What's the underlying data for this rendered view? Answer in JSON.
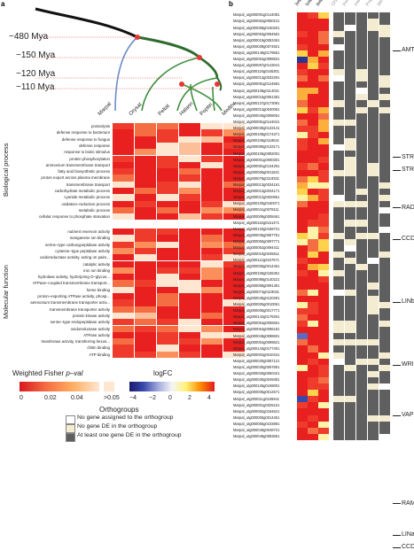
{
  "panel_a_label": "a",
  "panel_b_label": "b",
  "mya_labels": [
    "~480 Mya",
    "~150 Mya",
    "~120 Mya",
    "~110 Mya"
  ],
  "species": [
    "Marpal",
    "Orysat",
    "Peltat",
    "Halann",
    "Popttri",
    "Medtru"
  ],
  "bio_process_label": "Biological process",
  "mol_function_label": "Molecular function",
  "bio_terms": [
    "proteolysis",
    "defense response to bacterium",
    "defense response to fungus",
    "defense response",
    "response to biotic stimulus",
    "protein phosphorylation",
    "ammonium transmembrane transport",
    "fatty acid biosynthetic process",
    "proton export across plasma membrane",
    "transmembrane transport",
    "carbohydrate metabolic process",
    "cyanide metabolic process",
    "oxidation–reduction process",
    "metabolic process",
    "cellular response to phosphate starvation"
  ],
  "mol_terms": [
    "nutrient reservoir activity",
    "manganese ion binding",
    "serine–type carboxypeptidase activity",
    "cysteine–type peptidase activity",
    "oxidoreductase activity, acting on paire...",
    "catalytic activity",
    "iron ion binding",
    "hydrolase activity, hydrolyzing O–glycos...",
    "ATPase–coupled transmembrane transport...",
    "heme binding",
    "proton–exporting ATPase activity, phosp...",
    "ammonium transmembrane transporter activ...",
    "transmembrane transporter activity",
    "protein kinase activity",
    "serine–type endopeptidase activity",
    "oxidoreductase activity",
    "ATPase activity",
    "transferase activity, transferring hexos...",
    "chitin binding",
    "ATP binding"
  ],
  "fisher_title": "Weighted Fisher",
  "fisher_pval": "p–val",
  "fisher_ticks": [
    "0",
    "0.02",
    "0.04",
    ">0.05"
  ],
  "logfc_title": "logFC",
  "logfc_ticks": [
    "−4",
    "−2",
    "0",
    "2",
    "4"
  ],
  "orthogroups_title": "Orthogroups",
  "orthogroup_legend": [
    {
      "label": "No gene assigned to the orthogroup",
      "color": "#ffffff"
    },
    {
      "label": "No gene DE in the orthogroup",
      "color": "#f3ecd0"
    },
    {
      "label": "At least one gene DE in the orthogroup",
      "color": "#5f5f5f"
    }
  ],
  "condition_labels": [
    "3wp",
    "5wp",
    "8wp"
  ],
  "ortho_col_labels": [
    "Orysat",
    "Peltat",
    "Halann",
    "Popttri",
    "Medtru"
  ],
  "gene_ids": [
    "Marpal_utg000091g0144081",
    "Marpal_utg000052g0060241",
    "Marpal_utg000058g0100201",
    "Marpal_utg000053g0094581",
    "Marpal_utg000019g0053461",
    "Marpal_utg000039g0074821",
    "Marpal_utg000149g0179551",
    "Marpal_utg000054g0099831",
    "Marpal_utg000067g0143041",
    "Marpal_utg000119g0165301",
    "Marpal_utg000013g0032291",
    "Marpal_utg000081g0124581",
    "Marpal_utg000108g0114021",
    "Marpal_utg000016g0061381",
    "Marpal_utg000137g0173091",
    "Marpal_utg000013g0040081",
    "Marpal_utg000040g0008051",
    "Marpal_utg000091g0144041",
    "Marpal_utg000030g0133131",
    "Marpal_utg000108g0174371",
    "Marpal_utg000105g0118541",
    "Marpal_utg000080g0133171",
    "Marpal_utg000106g0082001",
    "Marpal_utg000001g0000301",
    "Marpal_utg000081g0134291",
    "Marpal_utg000005g0011521",
    "Marpal_utg000078g0119331",
    "Marpal_utg000013g0034161",
    "Marpal_utg000013g0034171",
    "Marpal_utg000012g0020651",
    "Marpal_utg000100g0160071",
    "Marpal_utg000041g0078111",
    "Marpal_utg000009g0008461",
    "Marpal_utg000116g0161471",
    "Marpal_utg000133g0168721",
    "Marpal_utg000035g0067751",
    "Marpal_utg000050g0097771",
    "Marpal_utg000052g0094411",
    "Marpal_utg000010g0045511",
    "Marpal_utg000112g0157671",
    "Marpal_utg000005g0014451",
    "Marpal_utg000106g0155351",
    "Marpal_utg000088g0140221",
    "Marpal_utg000058g0091391",
    "Marpal_utg000074g0118031",
    "Marpal_utg000045g0120281",
    "Marpal_utg000005g0010061",
    "Marpal_utg000005g0017771",
    "Marpal_utg000142g0178251",
    "Marpal_utg000054g0056661",
    "Marpal_utg000054g0096181",
    "Marpal_utg000049g0098601",
    "Marpal_utg000054g0099621",
    "Marpal_utg000143g0177401",
    "Marpal_utg000002g0010441",
    "Marpal_utg000030g0087121",
    "Marpal_utg000030g0067691",
    "Marpal_utg000020g0060421",
    "Marpal_utg000030g0049381",
    "Marpal_utg000126g0169001",
    "Marpal_utg000005g0012571",
    "Marpal_utg000011g0165941",
    "Marpal_utg000001g0025161",
    "Marpal_utg000082g0184521",
    "Marpal_utg000005g0014451",
    "Marpal_utg000055g0103891",
    "Marpal_utg000049g0048721",
    "Marpal_utg000049g0083651"
  ],
  "family_labels": [
    {
      "label": "AMT",
      "row": 6
    },
    {
      "label": "STR",
      "row": 23
    },
    {
      "label": "STR",
      "row": 25
    },
    {
      "label": "RAD",
      "row": 31
    },
    {
      "label": "CCD",
      "row": 36
    },
    {
      "label": "LINb",
      "row": 46
    },
    {
      "label": "WRI",
      "row": 56
    },
    {
      "label": "VAP",
      "row": 64
    },
    {
      "label": "RAM",
      "row": 78
    },
    {
      "label": "LINa",
      "row": 83
    },
    {
      "label": "CCD",
      "row": 85
    }
  ],
  "colors": {
    "fisher_low": "#d7191c",
    "fisher_mid": "#f07b52",
    "fisher_high": "#fde0c5",
    "logfc_neg": "#1a237e",
    "logfc_zero": "#f5f5f5",
    "logfc_pos": "#e41a1c",
    "ortho_dark": "#5f5f5f",
    "ortho_light": "#f3ecd0"
  }
}
